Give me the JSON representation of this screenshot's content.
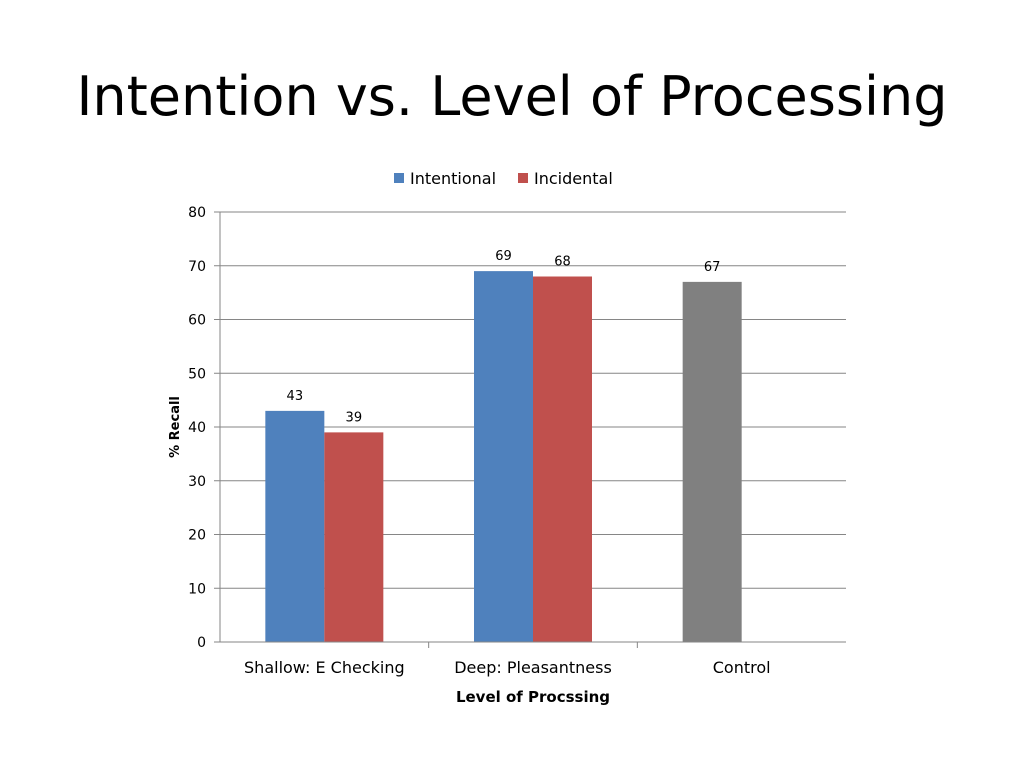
{
  "slide": {
    "title": "Intention vs. Level of Processing"
  },
  "chart_data": {
    "type": "bar",
    "title": "",
    "xlabel": "Level of Procssing",
    "ylabel": "% Recall",
    "ylim": [
      0,
      80
    ],
    "yticks": [
      0,
      10,
      20,
      30,
      40,
      50,
      60,
      70,
      80
    ],
    "grid": true,
    "legend_position": "top",
    "categories": [
      "Shallow: E Checking",
      "Deep: Pleasantness",
      "Control"
    ],
    "legend": [
      {
        "name": "Intentional",
        "color": "#4f81bd"
      },
      {
        "name": "Incidental",
        "color": "#c0504d"
      }
    ],
    "bars": [
      {
        "category": "Shallow: E Checking",
        "series": "Intentional",
        "value": 43,
        "color": "#4f81bd"
      },
      {
        "category": "Shallow: E Checking",
        "series": "Incidental",
        "value": 39,
        "color": "#c0504d"
      },
      {
        "category": "Deep: Pleasantness",
        "series": "Intentional",
        "value": 69,
        "color": "#4f81bd"
      },
      {
        "category": "Deep: Pleasantness",
        "series": "Incidental",
        "value": 68,
        "color": "#c0504d"
      },
      {
        "category": "Control",
        "series": "Control",
        "value": 67,
        "color": "#808080"
      }
    ]
  }
}
